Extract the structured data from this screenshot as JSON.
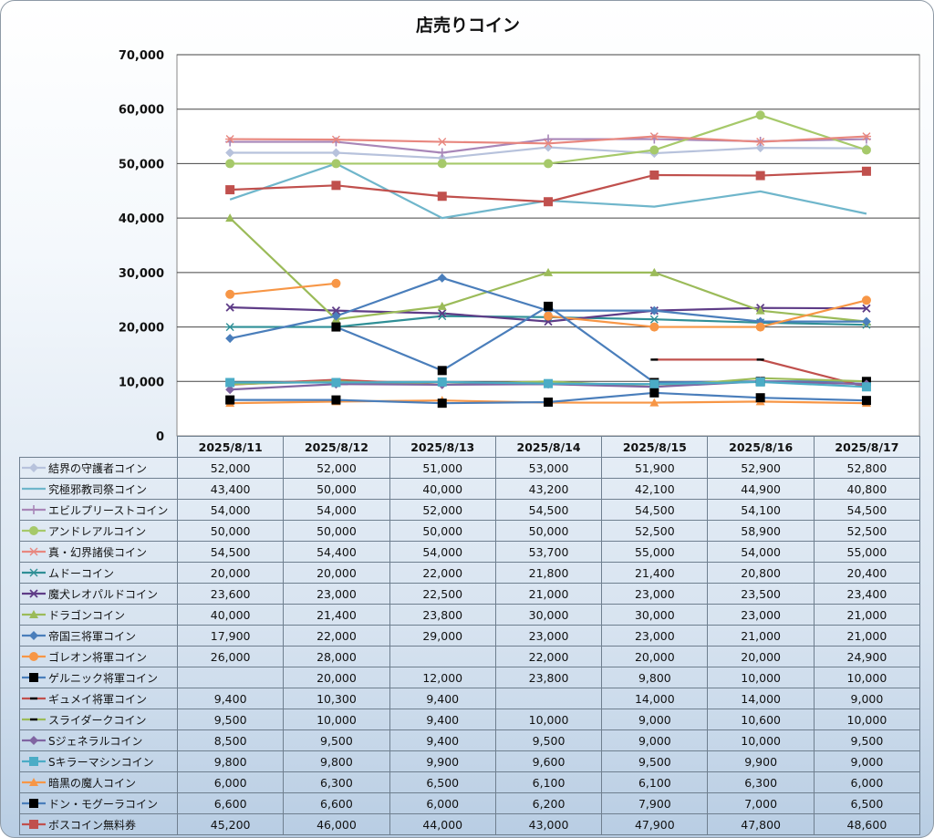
{
  "chart_data": {
    "type": "line",
    "title": "店売りコイン",
    "xlabel": "",
    "ylabel": "",
    "ylim": [
      0,
      70000
    ],
    "yticks": [
      0,
      10000,
      20000,
      30000,
      40000,
      50000,
      60000,
      70000
    ],
    "ytick_labels": [
      "0",
      "10,000",
      "20,000",
      "30,000",
      "40,000",
      "50,000",
      "60,000",
      "70,000"
    ],
    "grid": true,
    "legend": "data-table-left",
    "categories": [
      "2025/8/11",
      "2025/8/12",
      "2025/8/13",
      "2025/8/14",
      "2025/8/15",
      "2025/8/16",
      "2025/8/17"
    ],
    "series": [
      {
        "name": "結界の守護者コイン",
        "color": "#b7c2dc",
        "marker": "diamond",
        "values": [
          52000,
          52000,
          51000,
          53000,
          51900,
          52900,
          52800
        ],
        "labels": [
          "52,000",
          "52,000",
          "51,000",
          "53,000",
          "51,900",
          "52,900",
          "52,800"
        ]
      },
      {
        "name": "究極邪教司祭コイン",
        "color": "#6fb6cb",
        "marker": "none",
        "values": [
          43400,
          50000,
          40000,
          43200,
          42100,
          44900,
          40800
        ],
        "labels": [
          "43,400",
          "50,000",
          "40,000",
          "43,200",
          "42,100",
          "44,900",
          "40,800"
        ]
      },
      {
        "name": "エビルプリーストコイン",
        "color": "#a886b8",
        "marker": "plus",
        "values": [
          54000,
          54000,
          52000,
          54500,
          54500,
          54100,
          54500
        ],
        "labels": [
          "54,000",
          "54,000",
          "52,000",
          "54,500",
          "54,500",
          "54,100",
          "54,500"
        ]
      },
      {
        "name": "アンドレアルコイン",
        "color": "#a6c96a",
        "marker": "circle",
        "values": [
          50000,
          50000,
          50000,
          50000,
          52500,
          58900,
          52500
        ],
        "labels": [
          "50,000",
          "50,000",
          "50,000",
          "50,000",
          "52,500",
          "58,900",
          "52,500"
        ]
      },
      {
        "name": "真・幻界諸侯コイン",
        "color": "#e8877f",
        "marker": "star",
        "values": [
          54500,
          54400,
          54000,
          53700,
          55000,
          54000,
          55000
        ],
        "labels": [
          "54,500",
          "54,400",
          "54,000",
          "53,700",
          "55,000",
          "54,000",
          "55,000"
        ]
      },
      {
        "name": "ムドーコイン",
        "color": "#2f8f96",
        "marker": "star",
        "values": [
          20000,
          20000,
          22000,
          21800,
          21400,
          20800,
          20400
        ],
        "labels": [
          "20,000",
          "20,000",
          "22,000",
          "21,800",
          "21,400",
          "20,800",
          "20,400"
        ]
      },
      {
        "name": "魔犬レオパルドコイン",
        "color": "#5e3c87",
        "marker": "x",
        "values": [
          23600,
          23000,
          22500,
          21000,
          23000,
          23500,
          23400
        ],
        "labels": [
          "23,600",
          "23,000",
          "22,500",
          "21,000",
          "23,000",
          "23,500",
          "23,400"
        ]
      },
      {
        "name": "ドラゴンコイン",
        "color": "#9bbb59",
        "marker": "triangle",
        "values": [
          40000,
          21400,
          23800,
          30000,
          30000,
          23000,
          21000
        ],
        "labels": [
          "40,000",
          "21,400",
          "23,800",
          "30,000",
          "30,000",
          "23,000",
          "21,000"
        ]
      },
      {
        "name": "帝国三将軍コイン",
        "color": "#4a7ebb",
        "marker": "diamond",
        "values": [
          17900,
          22000,
          29000,
          23000,
          23000,
          21000,
          21000
        ],
        "labels": [
          "17,900",
          "22,000",
          "29,000",
          "23,000",
          "23,000",
          "21,000",
          "21,000"
        ]
      },
      {
        "name": "ゴレオン将軍コイン",
        "color": "#f79646",
        "marker": "circle",
        "values": [
          26000,
          28000,
          null,
          22000,
          20000,
          20000,
          24900
        ],
        "labels": [
          "26,000",
          "28,000",
          "",
          "22,000",
          "20,000",
          "20,000",
          "24,900"
        ]
      },
      {
        "name": "ゲルニック将軍コイン",
        "color": "#4a7ebb",
        "markerColor": "#000000",
        "marker": "square",
        "values": [
          null,
          20000,
          12000,
          23800,
          9800,
          10000,
          10000
        ],
        "labels": [
          "",
          "20,000",
          "12,000",
          "23,800",
          "9,800",
          "10,000",
          "10,000"
        ]
      },
      {
        "name": "ギュメイ将軍コイン",
        "color": "#c0504d",
        "markerColor": "#000000",
        "marker": "dash",
        "values": [
          9400,
          10300,
          9400,
          null,
          14000,
          14000,
          9000
        ],
        "labels": [
          "9,400",
          "10,300",
          "9,400",
          "",
          "14,000",
          "14,000",
          "9,000"
        ]
      },
      {
        "name": "スライダークコイン",
        "color": "#9bbb59",
        "markerColor": "#000000",
        "marker": "dash",
        "values": [
          9500,
          10000,
          9400,
          10000,
          9000,
          10600,
          10000
        ],
        "labels": [
          "9,500",
          "10,000",
          "9,400",
          "10,000",
          "9,000",
          "10,600",
          "10,000"
        ]
      },
      {
        "name": "Sジェネラルコイン",
        "color": "#8064a2",
        "marker": "diamond",
        "values": [
          8500,
          9500,
          9400,
          9500,
          9000,
          10000,
          9500
        ],
        "labels": [
          "8,500",
          "9,500",
          "9,400",
          "9,500",
          "9,000",
          "10,000",
          "9,500"
        ]
      },
      {
        "name": "Sキラーマシンコイン",
        "color": "#4bacc6",
        "marker": "square",
        "values": [
          9800,
          9800,
          9900,
          9600,
          9500,
          9900,
          9000
        ],
        "labels": [
          "9,800",
          "9,800",
          "9,900",
          "9,600",
          "9,500",
          "9,900",
          "9,000"
        ]
      },
      {
        "name": "暗黒の魔人コイン",
        "color": "#f79646",
        "marker": "triangle",
        "values": [
          6000,
          6300,
          6500,
          6100,
          6100,
          6300,
          6000
        ],
        "labels": [
          "6,000",
          "6,300",
          "6,500",
          "6,100",
          "6,100",
          "6,300",
          "6,000"
        ]
      },
      {
        "name": "ドン・モグーラコイン",
        "color": "#4a7ebb",
        "markerColor": "#000000",
        "marker": "square",
        "values": [
          6600,
          6600,
          6000,
          6200,
          7900,
          7000,
          6500
        ],
        "labels": [
          "6,600",
          "6,600",
          "6,000",
          "6,200",
          "7,900",
          "7,000",
          "6,500"
        ]
      },
      {
        "name": "ボスコイン無料券",
        "color": "#c0504d",
        "marker": "square",
        "values": [
          45200,
          46000,
          44000,
          43000,
          47900,
          47800,
          48600
        ],
        "labels": [
          "45,200",
          "46,000",
          "44,000",
          "43,000",
          "47,900",
          "47,800",
          "48,600"
        ]
      }
    ]
  }
}
